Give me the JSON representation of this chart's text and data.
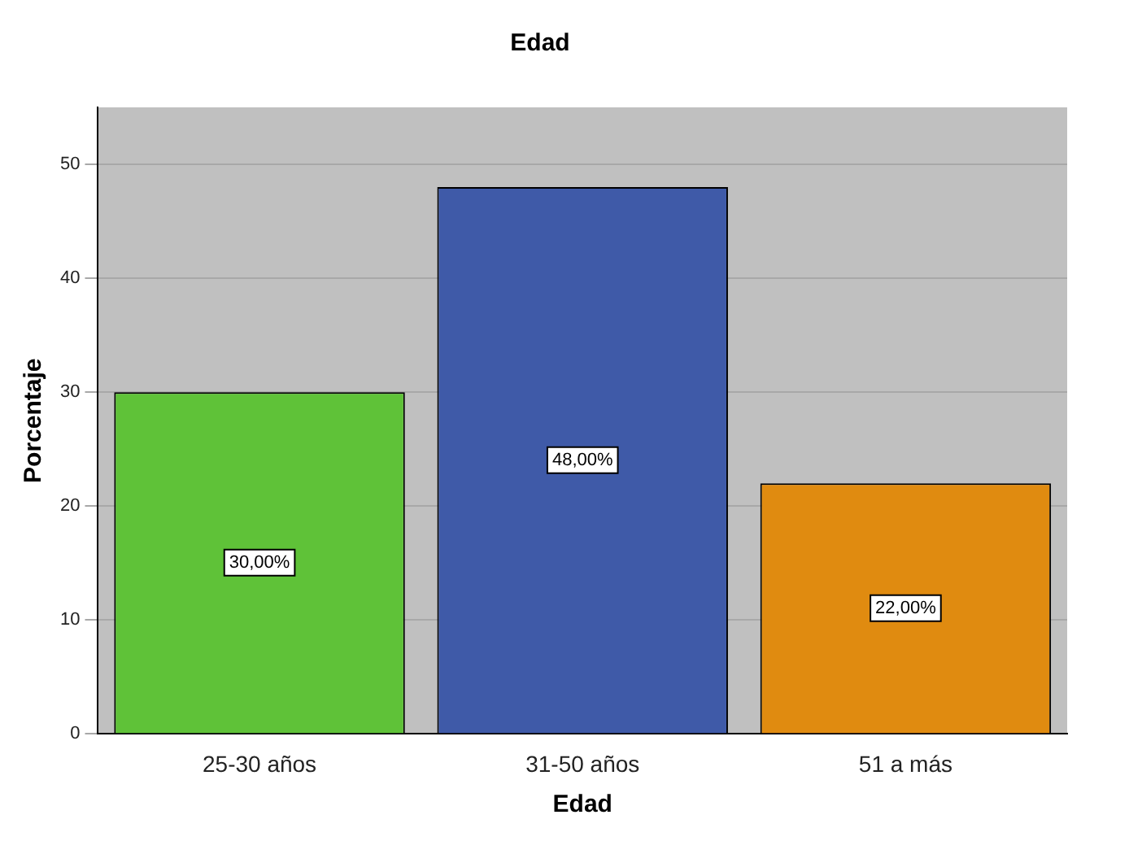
{
  "chart_data": {
    "type": "bar",
    "title": "Edad",
    "xlabel": "Edad",
    "ylabel": "Porcentaje",
    "categories": [
      "25-30 años",
      "31-50 años",
      "51 a más"
    ],
    "values": [
      30,
      48,
      22
    ],
    "colors": [
      "#5fc238",
      "#3f5aa8",
      "#e08b10"
    ],
    "value_labels": [
      "30,00%",
      "48,00%",
      "22,00%"
    ],
    "ylim": [
      0,
      55
    ],
    "yticks": [
      0,
      10,
      20,
      30,
      40,
      50
    ],
    "grid": "y"
  }
}
